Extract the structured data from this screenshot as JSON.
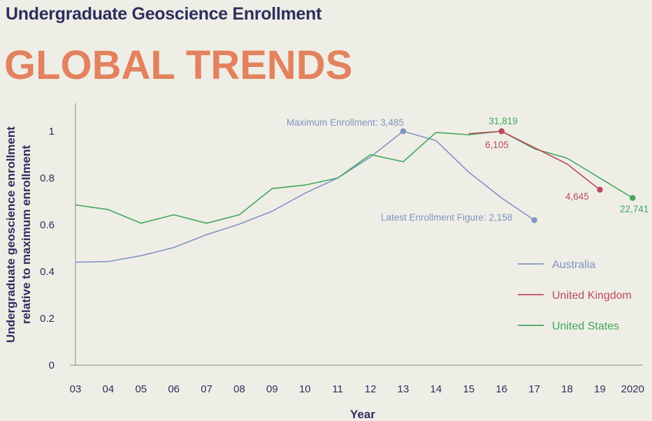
{
  "header": {
    "subtitle": "Undergraduate Geoscience Enrollment",
    "title": "GLOBAL TRENDS"
  },
  "chart_data": {
    "type": "line",
    "title": "GLOBAL TRENDS",
    "subtitle": "Undergraduate Geoscience Enrollment",
    "xlabel": "Year",
    "ylabel_line1": "Undergraduate geoscience enrollment",
    "ylabel_line2": "relative to maximum enrollment",
    "categories": [
      "03",
      "04",
      "05",
      "06",
      "07",
      "08",
      "09",
      "10",
      "11",
      "12",
      "13",
      "14",
      "15",
      "16",
      "17",
      "18",
      "19",
      "2020"
    ],
    "yticks": [
      0,
      0.2,
      0.4,
      0.6,
      0.8,
      1
    ],
    "ytick_labels": [
      "0",
      "0.2",
      "0.4",
      "0.6",
      "0.8",
      "1"
    ],
    "ylim": [
      0,
      1.12
    ],
    "legend_position": "right",
    "series": [
      {
        "name": "Australia",
        "color": "#7f94c2",
        "x": [
          "03",
          "04",
          "05",
          "06",
          "07",
          "08",
          "09",
          "10",
          "11",
          "12",
          "13",
          "14",
          "15",
          "16",
          "17"
        ],
        "values": [
          0.44,
          0.443,
          0.468,
          0.503,
          0.558,
          0.603,
          0.658,
          0.735,
          0.8,
          0.89,
          1.0,
          0.96,
          0.825,
          0.715,
          0.62
        ],
        "markers": [
          {
            "x": "13",
            "y": 1.0
          },
          {
            "x": "17",
            "y": 0.62
          }
        ]
      },
      {
        "name": "United Kingdom",
        "color": "#bb4a5a",
        "x": [
          "15",
          "16",
          "17",
          "18",
          "19"
        ],
        "values": [
          0.99,
          1.0,
          0.93,
          0.86,
          0.75
        ],
        "markers": [
          {
            "x": "16",
            "y": 1.0
          },
          {
            "x": "19",
            "y": 0.75
          }
        ]
      },
      {
        "name": "United States",
        "color": "#3fa85c",
        "x": [
          "03",
          "04",
          "05",
          "06",
          "07",
          "08",
          "09",
          "10",
          "11",
          "12",
          "13",
          "14",
          "15",
          "16",
          "17",
          "18",
          "19",
          "2020"
        ],
        "values": [
          0.685,
          0.665,
          0.607,
          0.643,
          0.607,
          0.643,
          0.755,
          0.77,
          0.8,
          0.9,
          0.87,
          0.995,
          0.985,
          1.0,
          0.925,
          0.885,
          0.8,
          0.715
        ],
        "markers": [
          {
            "x": "16",
            "y": 1.0
          },
          {
            "x": "2020",
            "y": 0.715
          }
        ]
      }
    ],
    "annotations": [
      {
        "text": "Maximum Enrollment: 3,485",
        "series": "Australia",
        "color": "#7f94c2"
      },
      {
        "text": "Latest Enrollment Figure: 2,158",
        "series": "Australia",
        "color": "#7f94c2"
      },
      {
        "text": "31,819",
        "series": "United States",
        "color": "#3fa85c"
      },
      {
        "text": "6,105",
        "series": "United Kingdom",
        "color": "#bb4a5a"
      },
      {
        "text": "4,645",
        "series": "United Kingdom",
        "color": "#bb4a5a"
      },
      {
        "text": "22,741",
        "series": "United States",
        "color": "#3fa85c"
      }
    ]
  }
}
